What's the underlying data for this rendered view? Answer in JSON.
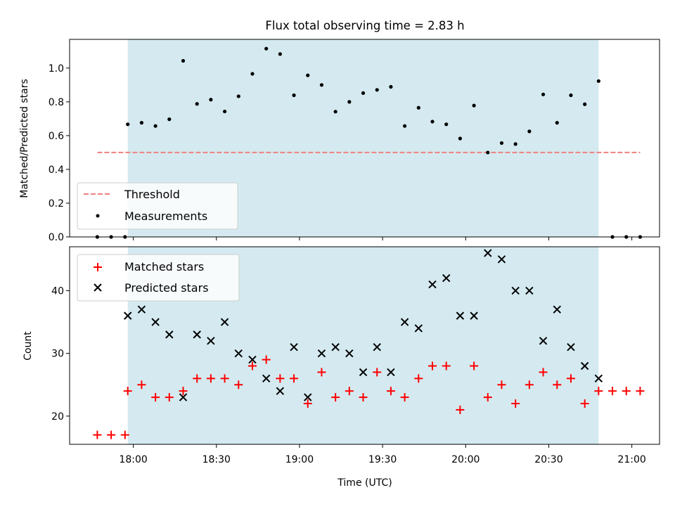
{
  "chart_data": [
    {
      "type": "scatter",
      "title": "Flux total observing time = 2.83 h",
      "xlabel": "",
      "ylabel": "Matched/Predicted stars",
      "xlim": [
        "17:37",
        "21:10"
      ],
      "ylim": [
        0,
        1.17
      ],
      "yticks": [
        "0.0",
        "0.2",
        "0.4",
        "0.6",
        "0.8",
        "1.0"
      ],
      "observing_window": [
        "17:58",
        "20:48"
      ],
      "colors": {
        "window": "#d4eaf0",
        "threshold": "#f08080",
        "measurements": "#000000"
      },
      "legend_position": "lower-left",
      "series": [
        {
          "name": "Threshold",
          "style": "dashed-line",
          "x": [
            "17:47",
            "21:03"
          ],
          "y": [
            0.5,
            0.5
          ]
        },
        {
          "name": "Measurements",
          "style": "dot",
          "x": [
            "17:47",
            "17:52",
            "17:57",
            "17:58",
            "18:03",
            "18:08",
            "18:13",
            "18:18",
            "18:23",
            "18:28",
            "18:33",
            "18:38",
            "18:43",
            "18:48",
            "18:53",
            "18:58",
            "19:03",
            "19:08",
            "19:13",
            "19:18",
            "19:23",
            "19:28",
            "19:33",
            "19:38",
            "19:43",
            "19:48",
            "19:53",
            "19:58",
            "20:03",
            "20:08",
            "20:13",
            "20:18",
            "20:23",
            "20:28",
            "20:33",
            "20:38",
            "20:43",
            "20:48",
            "20:53",
            "20:58",
            "21:03"
          ],
          "y": [
            0.0,
            0.0,
            0.0,
            0.667,
            0.676,
            0.657,
            0.697,
            1.043,
            0.788,
            0.813,
            0.743,
            0.833,
            0.966,
            1.115,
            1.083,
            0.839,
            0.957,
            0.9,
            0.742,
            0.8,
            0.852,
            0.871,
            0.889,
            0.657,
            0.765,
            0.683,
            0.667,
            0.583,
            0.778,
            0.5,
            0.556,
            0.55,
            0.625,
            0.844,
            0.676,
            0.839,
            0.786,
            0.923,
            0.0,
            0.0,
            0.0
          ]
        }
      ]
    },
    {
      "type": "scatter",
      "title": "",
      "xlabel": "Time (UTC)",
      "ylabel": "Count",
      "xlim": [
        "17:37",
        "21:10"
      ],
      "ylim": [
        15.5,
        47
      ],
      "xticks": [
        "18:00",
        "18:30",
        "19:00",
        "19:30",
        "20:00",
        "20:30",
        "21:00"
      ],
      "yticks": [
        "20",
        "30",
        "40"
      ],
      "observing_window": [
        "17:58",
        "20:48"
      ],
      "colors": {
        "window": "#d4eaf0",
        "matched": "#ff0000",
        "predicted": "#000000"
      },
      "legend_position": "upper-left",
      "series": [
        {
          "name": "Matched stars",
          "marker": "plus",
          "x": [
            "17:47",
            "17:52",
            "17:57",
            "17:58",
            "18:03",
            "18:08",
            "18:13",
            "18:18",
            "18:23",
            "18:28",
            "18:33",
            "18:38",
            "18:43",
            "18:48",
            "18:53",
            "18:58",
            "19:03",
            "19:08",
            "19:13",
            "19:18",
            "19:23",
            "19:28",
            "19:33",
            "19:38",
            "19:43",
            "19:48",
            "19:53",
            "19:58",
            "20:03",
            "20:08",
            "20:13",
            "20:18",
            "20:23",
            "20:28",
            "20:33",
            "20:38",
            "20:43",
            "20:48",
            "20:53",
            "20:58",
            "21:03"
          ],
          "y": [
            17,
            17,
            17,
            24,
            25,
            23,
            23,
            24,
            26,
            26,
            26,
            25,
            28,
            29,
            26,
            26,
            22,
            27,
            23,
            24,
            23,
            27,
            24,
            23,
            26,
            28,
            28,
            21,
            28,
            23,
            25,
            22,
            25,
            27,
            25,
            26,
            22,
            24,
            24,
            24,
            24
          ]
        },
        {
          "name": "Predicted stars",
          "marker": "x",
          "x": [
            "17:58",
            "18:03",
            "18:08",
            "18:13",
            "18:18",
            "18:23",
            "18:28",
            "18:33",
            "18:38",
            "18:43",
            "18:48",
            "18:53",
            "18:58",
            "19:03",
            "19:08",
            "19:13",
            "19:18",
            "19:23",
            "19:28",
            "19:33",
            "19:38",
            "19:43",
            "19:48",
            "19:53",
            "19:58",
            "20:03",
            "20:08",
            "20:13",
            "20:18",
            "20:23",
            "20:28",
            "20:33",
            "20:38",
            "20:43",
            "20:48"
          ],
          "y": [
            36,
            37,
            35,
            33,
            23,
            33,
            32,
            35,
            30,
            29,
            26,
            24,
            31,
            23,
            30,
            31,
            30,
            27,
            31,
            27,
            35,
            34,
            41,
            42,
            36,
            36,
            46,
            45,
            40,
            40,
            32,
            37,
            31,
            28,
            26
          ]
        }
      ]
    }
  ]
}
